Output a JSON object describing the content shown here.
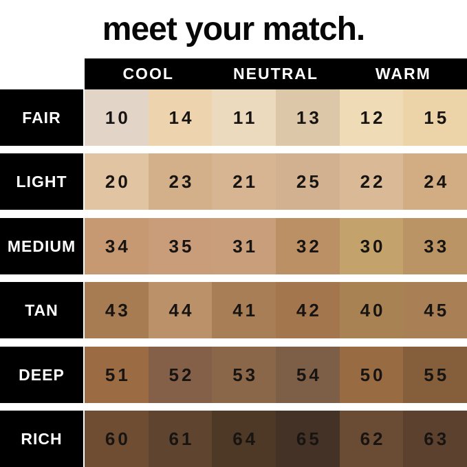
{
  "title": "meet your match.",
  "header": {
    "columns": [
      "COOL",
      "NEUTRAL",
      "WARM"
    ]
  },
  "rows": [
    {
      "label": "FAIR",
      "swatches": [
        {
          "number": "10",
          "color": "#E3D4C8"
        },
        {
          "number": "14",
          "color": "#EDD4AE"
        },
        {
          "number": "11",
          "color": "#EBDABD"
        },
        {
          "number": "13",
          "color": "#DDC7A9"
        },
        {
          "number": "12",
          "color": "#EFDCB6"
        },
        {
          "number": "15",
          "color": "#ECD4A8"
        }
      ]
    },
    {
      "label": "LIGHT",
      "swatches": [
        {
          "number": "20",
          "color": "#E1C4A1"
        },
        {
          "number": "23",
          "color": "#D4B08A"
        },
        {
          "number": "21",
          "color": "#D8B592"
        },
        {
          "number": "25",
          "color": "#D1B190"
        },
        {
          "number": "22",
          "color": "#DABA96"
        },
        {
          "number": "24",
          "color": "#D2AC82"
        }
      ]
    },
    {
      "label": "MEDIUM",
      "swatches": [
        {
          "number": "34",
          "color": "#C79972"
        },
        {
          "number": "35",
          "color": "#C99C7A"
        },
        {
          "number": "31",
          "color": "#C89E7B"
        },
        {
          "number": "32",
          "color": "#BC9065"
        },
        {
          "number": "30",
          "color": "#C4A26B"
        },
        {
          "number": "33",
          "color": "#BB9466"
        }
      ]
    },
    {
      "label": "TAN",
      "swatches": [
        {
          "number": "43",
          "color": "#A87C52"
        },
        {
          "number": "44",
          "color": "#BB916A"
        },
        {
          "number": "41",
          "color": "#A87E56"
        },
        {
          "number": "42",
          "color": "#A4764E"
        },
        {
          "number": "40",
          "color": "#A98254"
        },
        {
          "number": "45",
          "color": "#A97F56"
        }
      ]
    },
    {
      "label": "DEEP",
      "swatches": [
        {
          "number": "51",
          "color": "#9B6B44"
        },
        {
          "number": "52",
          "color": "#846049"
        },
        {
          "number": "53",
          "color": "#8A6749"
        },
        {
          "number": "54",
          "color": "#7D5E46"
        },
        {
          "number": "50",
          "color": "#986B42"
        },
        {
          "number": "55",
          "color": "#855F3C"
        }
      ]
    },
    {
      "label": "RICH",
      "swatches": [
        {
          "number": "60",
          "color": "#6E4D33"
        },
        {
          "number": "61",
          "color": "#5F4430"
        },
        {
          "number": "64",
          "color": "#4E3926"
        },
        {
          "number": "65",
          "color": "#443226"
        },
        {
          "number": "62",
          "color": "#6A4B34"
        },
        {
          "number": "63",
          "color": "#5C412E"
        }
      ]
    }
  ],
  "colors": {
    "background": "#FFFFFF",
    "header_bg": "#000000",
    "header_text": "#FFFFFF",
    "label_bg": "#000000",
    "label_text": "#FFFFFF",
    "number_text": "#181411",
    "title_text": "#070707"
  },
  "chart_data": {
    "type": "table",
    "title": "meet your match.",
    "column_groups": [
      "COOL",
      "NEUTRAL",
      "WARM"
    ],
    "columns_per_group": 2,
    "row_labels": [
      "FAIR",
      "LIGHT",
      "MEDIUM",
      "TAN",
      "DEEP",
      "RICH"
    ],
    "cells": [
      [
        10,
        14,
        11,
        13,
        12,
        15
      ],
      [
        20,
        23,
        21,
        25,
        22,
        24
      ],
      [
        34,
        35,
        31,
        32,
        30,
        33
      ],
      [
        43,
        44,
        41,
        42,
        40,
        45
      ],
      [
        51,
        52,
        53,
        54,
        50,
        55
      ],
      [
        60,
        61,
        64,
        65,
        62,
        63
      ]
    ],
    "cell_colors": [
      [
        "#E3D4C8",
        "#EDD4AE",
        "#EBDABD",
        "#DDC7A9",
        "#EFDCB6",
        "#ECD4A8"
      ],
      [
        "#E1C4A1",
        "#D4B08A",
        "#D8B592",
        "#D1B190",
        "#DABA96",
        "#D2AC82"
      ],
      [
        "#C79972",
        "#C99C7A",
        "#C89E7B",
        "#BC9065",
        "#C4A26B",
        "#BB9466"
      ],
      [
        "#A87C52",
        "#BB916A",
        "#A87E56",
        "#A4764E",
        "#A98254",
        "#A97F56"
      ],
      [
        "#9B6B44",
        "#846049",
        "#8A6749",
        "#7D5E46",
        "#986B42",
        "#855F3C"
      ],
      [
        "#6E4D33",
        "#5F4430",
        "#4E3926",
        "#443226",
        "#6A4B34",
        "#5C412E"
      ]
    ]
  }
}
